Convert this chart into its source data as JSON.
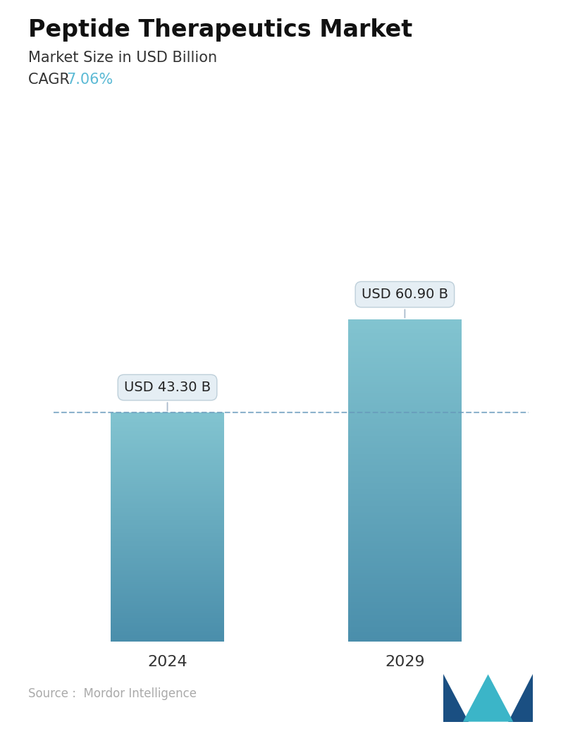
{
  "title": "Peptide Therapeutics Market",
  "subtitle": "Market Size in USD Billion",
  "cagr_label": "CAGR",
  "cagr_value": "7.06%",
  "cagr_color": "#5BBAD5",
  "categories": [
    "2024",
    "2029"
  ],
  "values": [
    43.3,
    60.9
  ],
  "bar_labels": [
    "USD 43.30 B",
    "USD 60.90 B"
  ],
  "bar_color_top": "#4A8EAB",
  "bar_color_bottom": "#82C4D0",
  "dashed_line_color": "#6699BB",
  "dashed_line_value": 43.3,
  "source_text": "Source :  Mordor Intelligence",
  "source_color": "#AAAAAA",
  "background_color": "#ffffff",
  "title_fontsize": 24,
  "subtitle_fontsize": 15,
  "cagr_fontsize": 15,
  "tick_fontsize": 16,
  "label_fontsize": 14,
  "ylim": [
    0,
    80
  ],
  "bar_width": 0.22,
  "x_positions": [
    0.27,
    0.73
  ]
}
